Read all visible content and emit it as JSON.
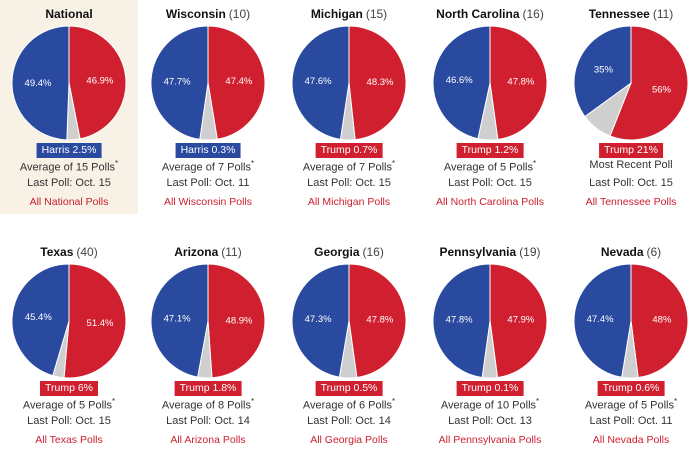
{
  "colors": {
    "dem": "#2a4aa0",
    "rep": "#d0202f",
    "other": "#cfcfcf",
    "highlight_bg": "#f7f1e6",
    "link": "#cc1f2d"
  },
  "chart_data": [
    {
      "type": "pie",
      "title": "National",
      "ev": "",
      "categories": [
        "Harris",
        "Trump",
        "Other"
      ],
      "values": [
        49.4,
        46.9,
        3.7
      ],
      "labels": [
        "49.4%",
        "46.9%"
      ],
      "badge": "Harris 2.5%",
      "badge_party": "dem",
      "line1": "Average of 15 Polls",
      "asterisk": "*",
      "line2": "Last Poll: Oct. 15",
      "link": "All National Polls",
      "highlight": true
    },
    {
      "type": "pie",
      "title": "Wisconsin",
      "ev": "(10)",
      "categories": [
        "Harris",
        "Trump",
        "Other"
      ],
      "values": [
        47.7,
        47.4,
        4.9
      ],
      "labels": [
        "47.7%",
        "47.4%"
      ],
      "badge": "Harris 0.3%",
      "badge_party": "dem",
      "line1": "Average of 7 Polls",
      "asterisk": "*",
      "line2": "Last Poll: Oct. 11",
      "link": "All Wisconsin Polls"
    },
    {
      "type": "pie",
      "title": "Michigan",
      "ev": "(15)",
      "categories": [
        "Harris",
        "Trump",
        "Other"
      ],
      "values": [
        47.6,
        48.3,
        4.1
      ],
      "labels": [
        "47.6%",
        "48.3%"
      ],
      "badge": "Trump 0.7%",
      "badge_party": "rep",
      "line1": "Average of 7 Polls",
      "asterisk": "*",
      "line2": "Last Poll: Oct. 15",
      "link": "All Michigan Polls"
    },
    {
      "type": "pie",
      "title": "North Carolina",
      "ev": "(16)",
      "categories": [
        "Harris",
        "Trump",
        "Other"
      ],
      "values": [
        46.6,
        47.8,
        5.6
      ],
      "labels": [
        "46.6%",
        "47.8%"
      ],
      "badge": "Trump 1.2%",
      "badge_party": "rep",
      "line1": "Average of 5 Polls",
      "asterisk": "*",
      "line2": "Last Poll: Oct. 15",
      "link": "All North Carolina Polls"
    },
    {
      "type": "pie",
      "title": "Tennessee",
      "ev": "(11)",
      "categories": [
        "Harris",
        "Trump",
        "Other"
      ],
      "values": [
        35,
        56,
        9
      ],
      "labels": [
        "35%",
        "56%"
      ],
      "badge": "Trump 21%",
      "badge_party": "rep",
      "line1": "Most Recent Poll",
      "asterisk": "",
      "line2": "Last Poll: Oct. 15",
      "link": "All Tennessee Polls"
    },
    {
      "type": "pie",
      "title": "Texas",
      "ev": "(40)",
      "categories": [
        "Harris",
        "Trump",
        "Other"
      ],
      "values": [
        45.4,
        51.4,
        3.2
      ],
      "labels": [
        "45.4%",
        "51.4%"
      ],
      "badge": "Trump 6%",
      "badge_party": "rep",
      "line1": "Average of 5 Polls",
      "asterisk": "*",
      "line2": "Last Poll: Oct. 15",
      "link": "All Texas Polls"
    },
    {
      "type": "pie",
      "title": "Arizona",
      "ev": "(11)",
      "categories": [
        "Harris",
        "Trump",
        "Other"
      ],
      "values": [
        47.1,
        48.9,
        4.0
      ],
      "labels": [
        "47.1%",
        "48.9%"
      ],
      "badge": "Trump 1.8%",
      "badge_party": "rep",
      "line1": "Average of 8 Polls",
      "asterisk": "*",
      "line2": "Last Poll: Oct. 14",
      "link": "All Arizona Polls"
    },
    {
      "type": "pie",
      "title": "Georgia",
      "ev": "(16)",
      "categories": [
        "Harris",
        "Trump",
        "Other"
      ],
      "values": [
        47.3,
        47.8,
        4.9
      ],
      "labels": [
        "47.3%",
        "47.8%"
      ],
      "badge": "Trump 0.5%",
      "badge_party": "rep",
      "line1": "Average of 6 Polls",
      "asterisk": "*",
      "line2": "Last Poll: Oct. 14",
      "link": "All Georgia Polls"
    },
    {
      "type": "pie",
      "title": "Pennsylvania",
      "ev": "(19)",
      "categories": [
        "Harris",
        "Trump",
        "Other"
      ],
      "values": [
        47.8,
        47.9,
        4.3
      ],
      "labels": [
        "47.8%",
        "47.9%"
      ],
      "badge": "Trump 0.1%",
      "badge_party": "rep",
      "line1": "Average of 10 Polls",
      "asterisk": "*",
      "line2": "Last Poll: Oct. 13",
      "link": "All Pennsylvania Polls"
    },
    {
      "type": "pie",
      "title": "Nevada",
      "ev": "(6)",
      "categories": [
        "Harris",
        "Trump",
        "Other"
      ],
      "values": [
        47.4,
        48,
        4.6
      ],
      "labels": [
        "47.4%",
        "48%"
      ],
      "badge": "Trump 0.6%",
      "badge_party": "rep",
      "line1": "Average of 5 Polls",
      "asterisk": "*",
      "line2": "Last Poll: Oct. 11",
      "link": "All Nevada Polls"
    }
  ]
}
